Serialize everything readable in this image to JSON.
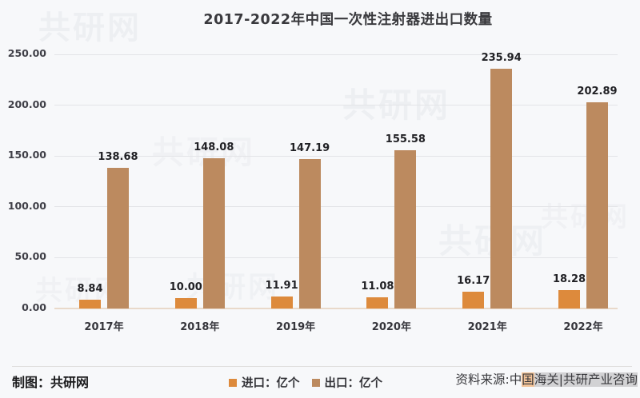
{
  "page_title": "2017-2022年中国一次性注射器进出口数量",
  "chart_data": {
    "type": "bar",
    "title": "2017-2022年中国一次性注射器进出口数量",
    "categories": [
      "2017年",
      "2018年",
      "2019年",
      "2020年",
      "2021年",
      "2022年"
    ],
    "series": [
      {
        "id": "import",
        "name": "进口：亿个",
        "color": "#dd8a3c",
        "values": [
          8.84,
          10.0,
          11.91,
          11.08,
          16.17,
          18.28
        ],
        "labels": [
          "8.84",
          "10.00",
          "11.91",
          "11.08",
          "16.17",
          "18.28"
        ]
      },
      {
        "id": "export",
        "name": "出口：亿个",
        "color": "#bc8a5f",
        "values": [
          138.68,
          148.08,
          147.19,
          155.58,
          235.94,
          202.89
        ],
        "labels": [
          "138.68",
          "148.08",
          "147.19",
          "155.58",
          "235.94",
          "202.89"
        ]
      }
    ],
    "xlabel": "",
    "ylabel": "",
    "ylim": [
      0,
      250
    ],
    "yticks": [
      0,
      50,
      100,
      150,
      200,
      250
    ],
    "ytick_labels": [
      "0.00",
      "50.00",
      "100.00",
      "150.00",
      "200.00",
      "250.00"
    ],
    "grid": true,
    "legend_position": "bottom-center"
  },
  "footer": {
    "credit": "制图：共研网",
    "legend": [
      {
        "label": "进口：亿个",
        "color": "#dd8a3c"
      },
      {
        "label": "出口：亿个",
        "color": "#bc8a5f"
      }
    ],
    "source": {
      "full": "资料来源:中国海关|共研产业咨询",
      "segments": [
        {
          "text": "资料来源:中",
          "highlight": "none"
        },
        {
          "text": "国",
          "highlight": "orange"
        },
        {
          "text": "海关|共研产业咨询",
          "highlight": "gray"
        }
      ]
    }
  },
  "watermark": {
    "text": "共研网"
  },
  "colors": {
    "background": "#f7f8fa",
    "import_bar": "#dd8a3c",
    "export_bar": "#bc8a5f",
    "gridline": "#e3e4e7",
    "baseline": "#e9d9ca",
    "title_text": "#39393d",
    "axis_text": "#3f3f47",
    "data_label": "#212125"
  }
}
